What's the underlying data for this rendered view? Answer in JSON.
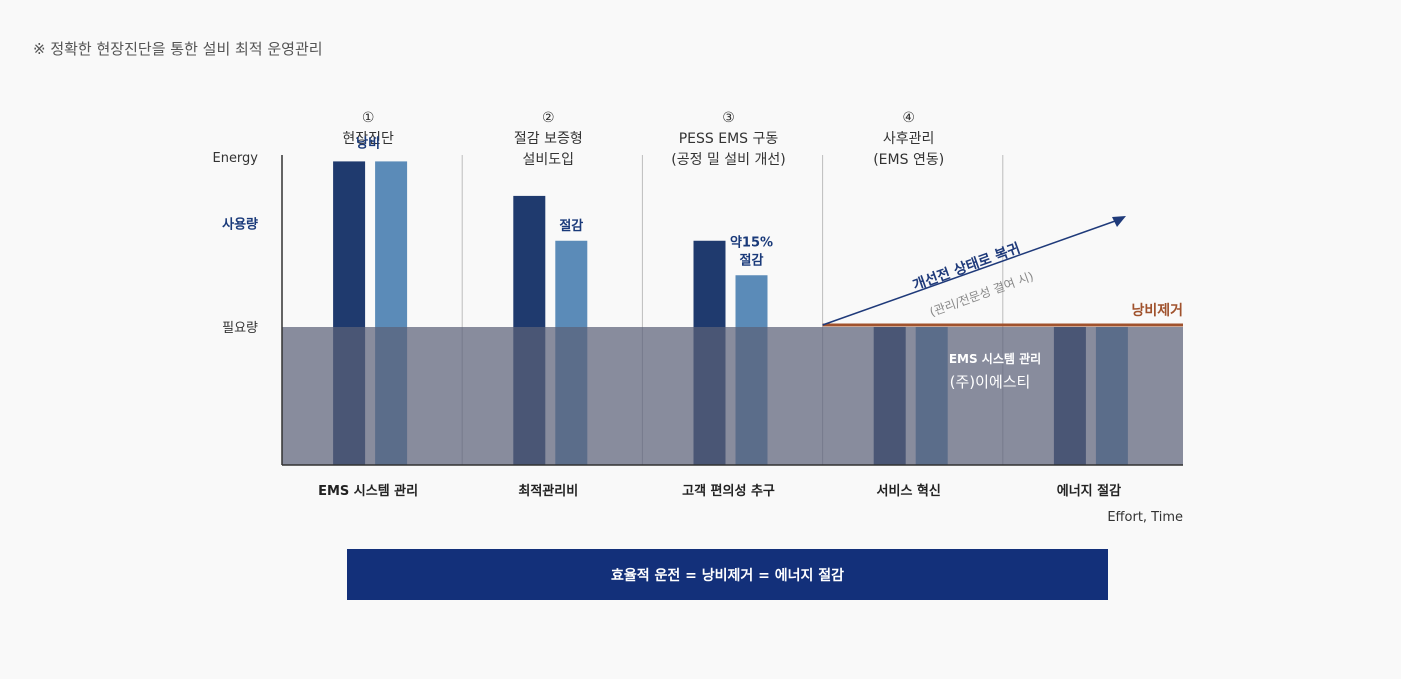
{
  "note": "※ 정확한 현장진단을 통한 설비 최적 운영관리",
  "colors": {
    "bar_dark": "#1f3a6e",
    "bar_light": "#5b8bb8",
    "baseline_fill": "#5b6178",
    "arrow": "#1f3a7a",
    "waste_line": "#a0522d",
    "accent_text": "#1a3a7a",
    "banner": "#13307a"
  },
  "chart_data": {
    "type": "bar",
    "y_axis_label": "Energy",
    "x_axis_label": "Effort, Time",
    "y_levels": [
      {
        "label": "사용량",
        "emphasis": true
      },
      {
        "label": "필요량",
        "emphasis": false
      }
    ],
    "ylim": [
      0,
      100
    ],
    "required_level": 40,
    "stages": [
      {
        "number": "①",
        "title_lines": [
          "현장진단"
        ],
        "bottom_label": "EMS 시스템 관리",
        "bars": [
          88,
          88
        ],
        "annotation": [
          "낭비"
        ]
      },
      {
        "number": "②",
        "title_lines": [
          "절감 보증형",
          "설비도입"
        ],
        "bottom_label": "최적관리비",
        "bars": [
          78,
          65
        ],
        "annotation": [
          "절감"
        ]
      },
      {
        "number": "③",
        "title_lines": [
          "PESS EMS 구동",
          "(공정 밀 설비 개선)"
        ],
        "bottom_label": "고객 편의성 추구",
        "bars": [
          65,
          55
        ],
        "annotation": [
          "약15%",
          "절감"
        ]
      },
      {
        "number": "④",
        "title_lines": [
          "사후관리",
          "(EMS 연동)"
        ],
        "bottom_label": "서비스 혁신",
        "bars": [
          40,
          40
        ],
        "annotation": []
      },
      {
        "number": "",
        "title_lines": [],
        "bottom_label": "에너지 절감",
        "bars": [
          40,
          40
        ],
        "annotation": []
      }
    ],
    "arrow_label": "개선전 상태로 복귀",
    "arrow_sublabel": "(관리/전문성 결여 시)",
    "waste_removal_label": "낭비제거",
    "company_lines": [
      "EMS 시스템 관리",
      "(주)이에스티"
    ]
  },
  "banner": "효율적 운전 = 낭비제거 = 에너지 절감"
}
